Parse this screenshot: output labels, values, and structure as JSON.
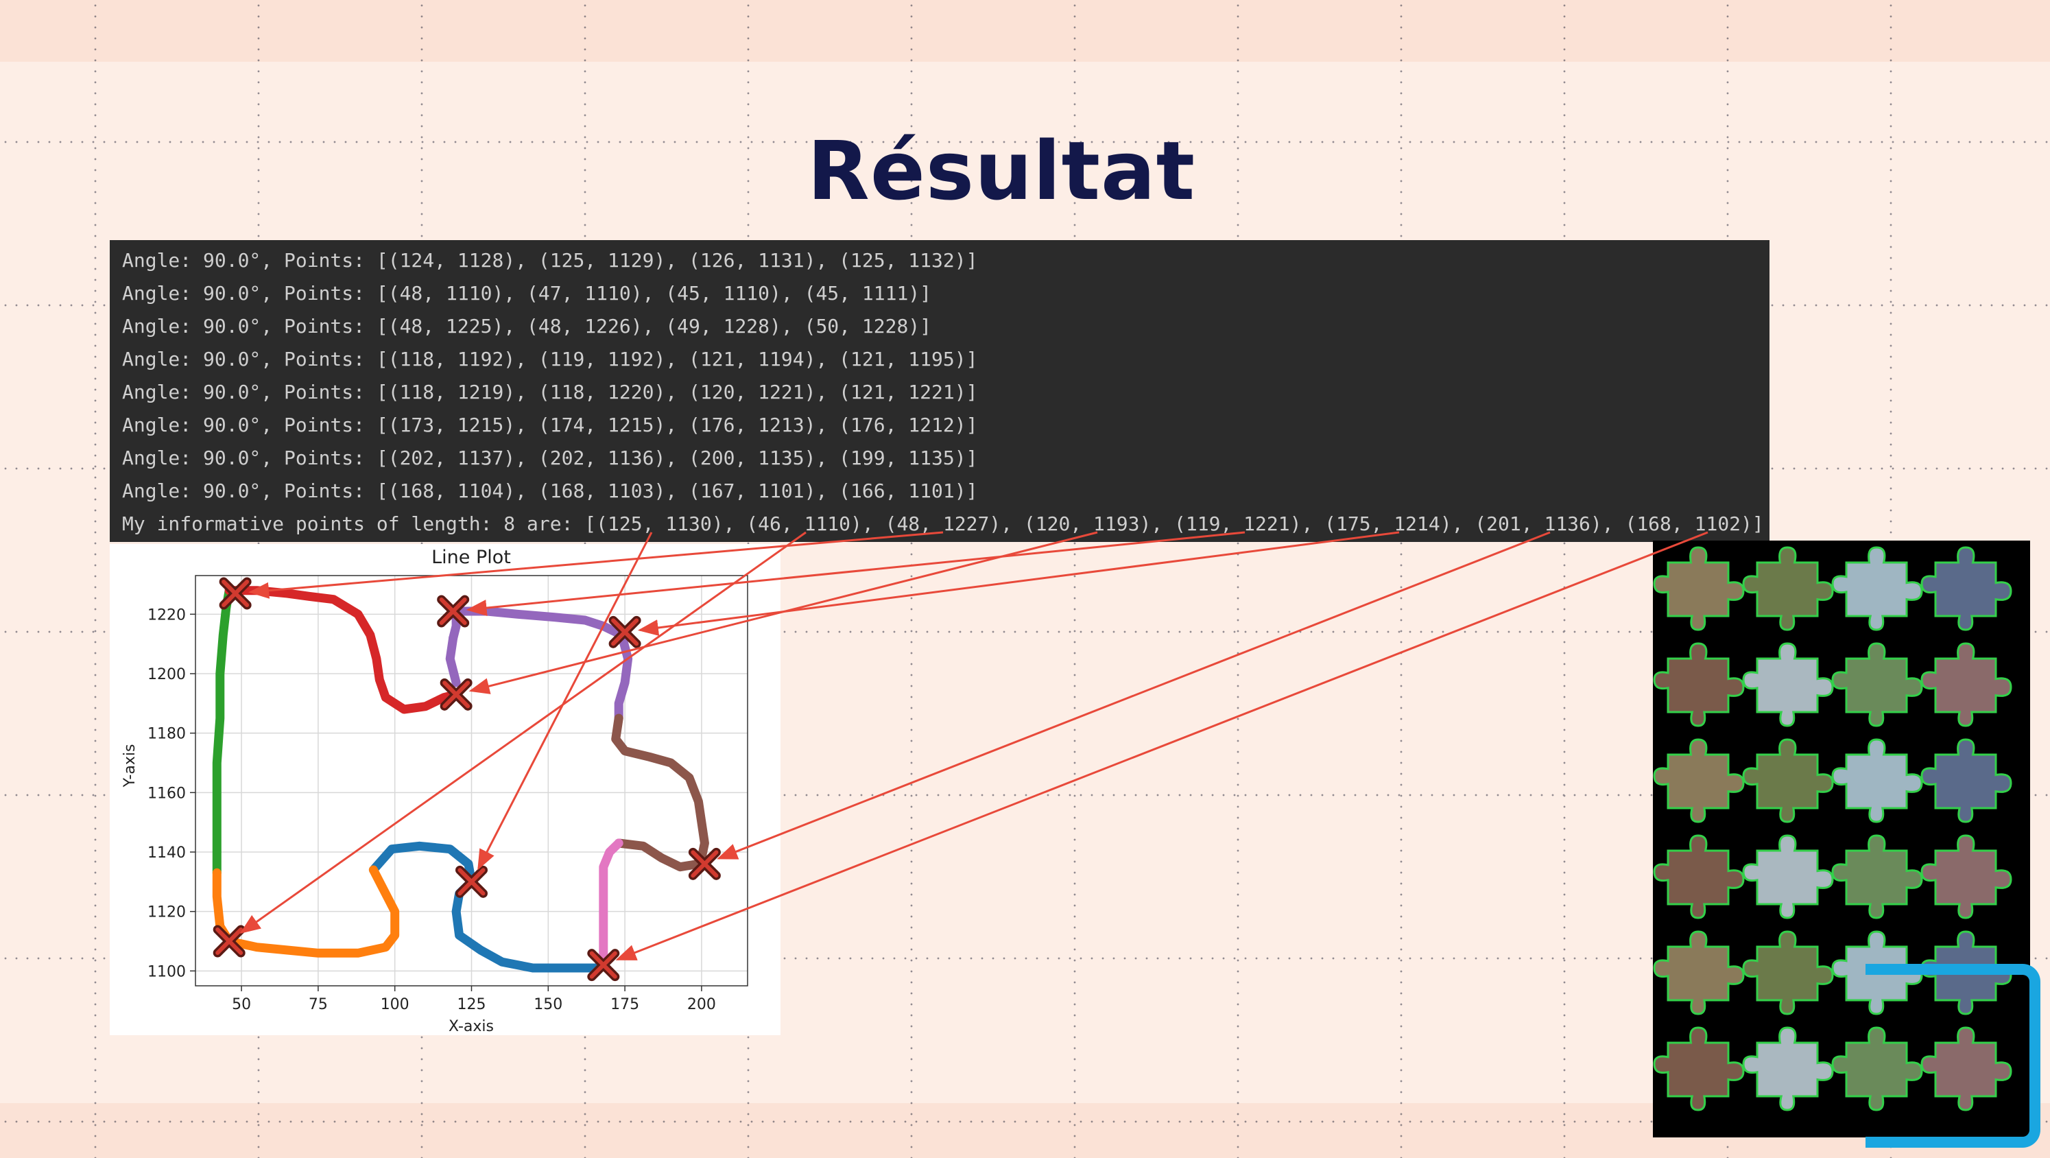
{
  "slide": {
    "title": "Résultat"
  },
  "console": {
    "lines": [
      "Angle: 90.0°, Points: [(124, 1128), (125, 1129), (126, 1131), (125, 1132)]",
      "Angle: 90.0°, Points: [(48, 1110), (47, 1110), (45, 1110), (45, 1111)]",
      "Angle: 90.0°, Points: [(48, 1225), (48, 1226), (49, 1228), (50, 1228)]",
      "Angle: 90.0°, Points: [(118, 1192), (119, 1192), (121, 1194), (121, 1195)]",
      "Angle: 90.0°, Points: [(118, 1219), (118, 1220), (120, 1221), (121, 1221)]",
      "Angle: 90.0°, Points: [(173, 1215), (174, 1215), (176, 1213), (176, 1212)]",
      "Angle: 90.0°, Points: [(202, 1137), (202, 1136), (200, 1135), (199, 1135)]",
      "Angle: 90.0°, Points: [(168, 1104), (168, 1103), (167, 1101), (166, 1101)]",
      "My informative points of length: 8 are: [(125, 1130), (46, 1110), (48, 1227), (120, 1193), (119, 1221), (175, 1214), (201, 1136), (168, 1102)]"
    ]
  },
  "chart_data": {
    "type": "line",
    "title": "Line Plot",
    "xlabel": "X-axis",
    "ylabel": "Y-axis",
    "xlim": [
      35,
      215
    ],
    "ylim": [
      1095,
      1233
    ],
    "xticks": [
      50,
      75,
      100,
      125,
      150,
      175,
      200
    ],
    "yticks": [
      1100,
      1120,
      1140,
      1160,
      1180,
      1200,
      1220
    ],
    "grid": true,
    "series": [
      {
        "color": "#2ca02c",
        "points": [
          [
            42,
            1133
          ],
          [
            42,
            1150
          ],
          [
            42,
            1170
          ],
          [
            43,
            1185
          ],
          [
            43,
            1200
          ],
          [
            44,
            1213
          ],
          [
            45,
            1222
          ],
          [
            46,
            1228
          ]
        ]
      },
      {
        "color": "#d62728",
        "points": [
          [
            46,
            1228
          ],
          [
            55,
            1228
          ],
          [
            65,
            1227
          ],
          [
            72,
            1226
          ],
          [
            80,
            1225
          ],
          [
            88,
            1220
          ],
          [
            92,
            1213
          ],
          [
            94,
            1205
          ],
          [
            95,
            1198
          ],
          [
            97,
            1192
          ],
          [
            103,
            1188
          ],
          [
            110,
            1189
          ],
          [
            116,
            1192
          ],
          [
            120,
            1193
          ]
        ]
      },
      {
        "color": "#9467bd",
        "points": [
          [
            119,
            1212
          ],
          [
            120,
            1216
          ],
          [
            120,
            1221
          ],
          [
            130,
            1221
          ],
          [
            140,
            1220
          ],
          [
            152,
            1219
          ],
          [
            162,
            1218
          ],
          [
            168,
            1216
          ],
          [
            174,
            1213
          ],
          [
            176,
            1205
          ],
          [
            175,
            1197
          ],
          [
            173,
            1190
          ],
          [
            173,
            1185
          ]
        ]
      },
      {
        "color": "#9467bd",
        "points": [
          [
            119,
            1212
          ],
          [
            118,
            1205
          ],
          [
            120,
            1197
          ]
        ]
      },
      {
        "color": "#8c564b",
        "points": [
          [
            173,
            1185
          ],
          [
            172,
            1178
          ],
          [
            175,
            1174
          ],
          [
            183,
            1172
          ],
          [
            190,
            1170
          ],
          [
            196,
            1165
          ],
          [
            199,
            1157
          ],
          [
            200,
            1150
          ],
          [
            201,
            1143
          ],
          [
            200,
            1138
          ],
          [
            199,
            1136
          ]
        ]
      },
      {
        "color": "#8c564b",
        "points": [
          [
            199,
            1136
          ],
          [
            193,
            1135
          ],
          [
            187,
            1138
          ],
          [
            181,
            1142
          ],
          [
            173,
            1143
          ]
        ]
      },
      {
        "color": "#e377c2",
        "points": [
          [
            173,
            1143
          ],
          [
            170,
            1140
          ],
          [
            168,
            1135
          ],
          [
            168,
            1125
          ],
          [
            168,
            1112
          ],
          [
            168,
            1104
          ],
          [
            166,
            1101
          ]
        ]
      },
      {
        "color": "#1f77b4",
        "points": [
          [
            166,
            1101
          ],
          [
            155,
            1101
          ],
          [
            145,
            1101
          ],
          [
            135,
            1103
          ],
          [
            128,
            1107
          ],
          [
            121,
            1112
          ],
          [
            120,
            1120
          ],
          [
            121,
            1126
          ],
          [
            125,
            1130
          ]
        ]
      },
      {
        "color": "#1f77b4",
        "points": [
          [
            125,
            1130
          ],
          [
            124,
            1136
          ],
          [
            118,
            1141
          ],
          [
            108,
            1142
          ],
          [
            99,
            1141
          ],
          [
            93,
            1134
          ]
        ]
      },
      {
        "color": "#ff7f0e",
        "points": [
          [
            93,
            1134
          ],
          [
            96,
            1128
          ],
          [
            100,
            1120
          ],
          [
            100,
            1112
          ],
          [
            97,
            1108
          ],
          [
            88,
            1106
          ],
          [
            75,
            1106
          ],
          [
            65,
            1107
          ],
          [
            55,
            1108
          ],
          [
            46,
            1110
          ],
          [
            43,
            1115
          ],
          [
            42,
            1125
          ],
          [
            42,
            1133
          ]
        ]
      }
    ],
    "markers": [
      [
        46,
        1110
      ],
      [
        48,
        1227
      ],
      [
        120,
        1193
      ],
      [
        119,
        1221
      ],
      [
        125,
        1130
      ],
      [
        175,
        1214
      ],
      [
        201,
        1136
      ],
      [
        168,
        1102
      ]
    ]
  }
}
